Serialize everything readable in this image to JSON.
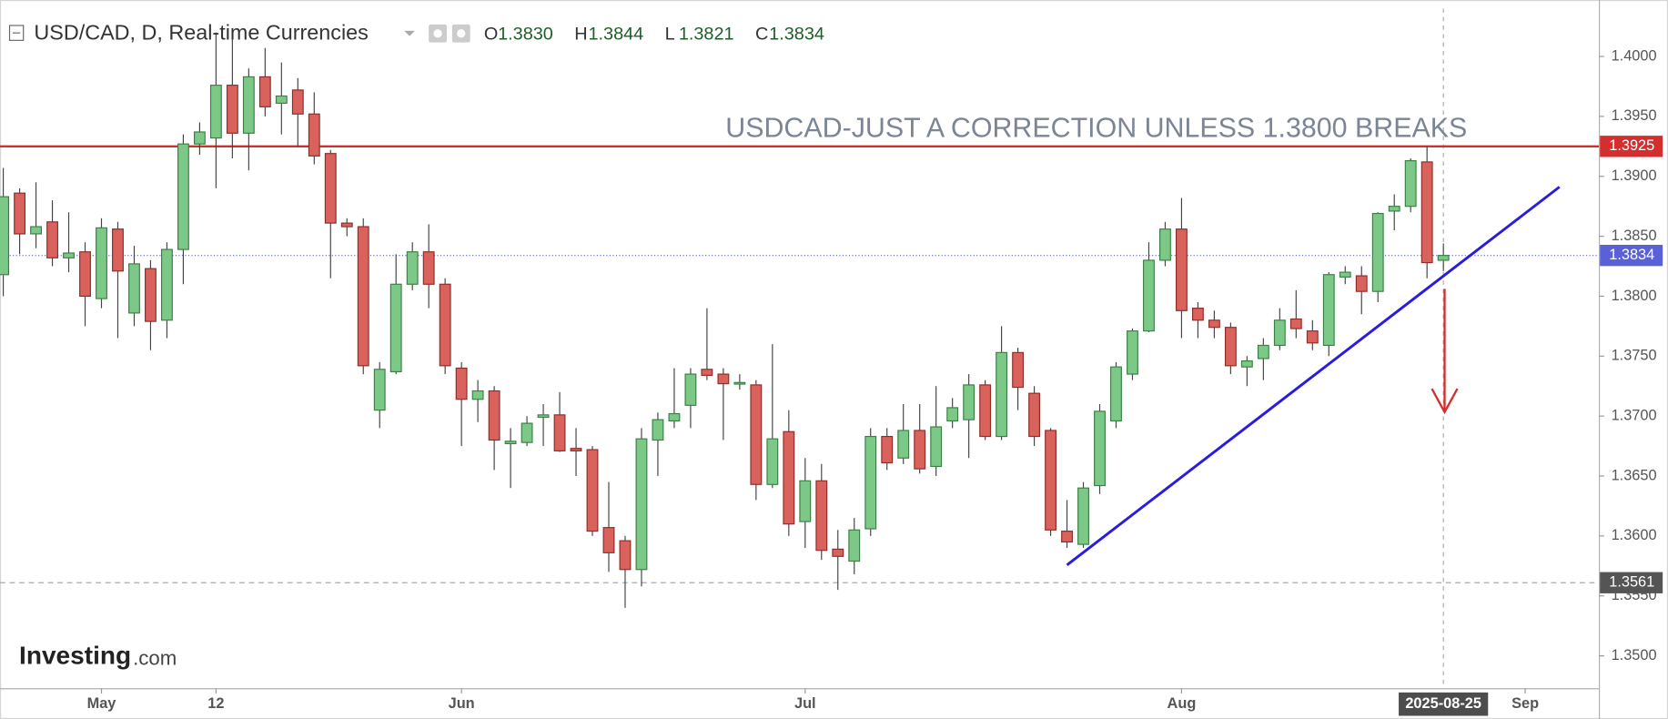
{
  "chart_data": {
    "type": "candlestick",
    "title": "USD/CAD, D, Real-time Currencies",
    "ohlc_header": [
      {
        "name": "O",
        "value": 1.383,
        "label": "1.3830"
      },
      {
        "name": "H",
        "value": 1.3844,
        "label": "1.3844"
      },
      {
        "name": "L",
        "value": 1.3821,
        "label": "1.3821"
      },
      {
        "name": "C",
        "value": 1.3834,
        "label": "1.3834"
      }
    ],
    "annotation": "USDCAD-JUST A CORRECTION UNLESS 1.3800 BREAKS",
    "logo": {
      "brand": "Investing",
      "suffix": ".com"
    },
    "up_color": "#7cc987",
    "down_color": "#d9625c",
    "series": {
      "open": [
        1.3818,
        1.3886,
        1.3852,
        1.3862,
        1.3832,
        1.3837,
        1.3798,
        1.3856,
        1.3786,
        1.3823,
        1.378,
        1.3839,
        1.3927,
        1.3932,
        1.3976,
        1.3936,
        1.3983,
        1.3961,
        1.3972,
        1.3952,
        1.3919,
        1.3861,
        1.3858,
        1.3705,
        1.3737,
        1.381,
        1.3837,
        1.381,
        1.374,
        1.3714,
        1.3721,
        1.3677,
        1.3678,
        1.3699,
        1.3701,
        1.3673,
        1.3672,
        1.3607,
        1.3596,
        1.3572,
        1.368,
        1.3696,
        1.3709,
        1.3739,
        1.3735,
        1.3727,
        1.3726,
        1.3643,
        1.3687,
        1.3612,
        1.3646,
        1.3589,
        1.3579,
        1.3606,
        1.3683,
        1.3665,
        1.3688,
        1.3658,
        1.3696,
        1.3697,
        1.3726,
        1.3683,
        1.3753,
        1.3719,
        1.3688,
        1.3604,
        1.3593,
        1.3642,
        1.3696,
        1.3735,
        1.3771,
        1.383,
        1.3856,
        1.379,
        1.378,
        1.3774,
        1.3741,
        1.3748,
        1.3759,
        1.3781,
        1.3771,
        1.3759,
        1.3816,
        1.3817,
        1.3804,
        1.3871,
        1.3875,
        1.3912,
        1.383
      ],
      "high": [
        1.3907,
        1.389,
        1.3895,
        1.388,
        1.387,
        1.3845,
        1.3865,
        1.3862,
        1.3842,
        1.383,
        1.3845,
        1.3935,
        1.3945,
        1.402,
        1.402,
        1.399,
        1.4007,
        1.3995,
        1.3982,
        1.397,
        1.3922,
        1.3865,
        1.3865,
        1.3745,
        1.3835,
        1.3845,
        1.386,
        1.3815,
        1.3745,
        1.373,
        1.3725,
        1.369,
        1.37,
        1.371,
        1.372,
        1.369,
        1.3675,
        1.3645,
        1.36,
        1.369,
        1.3703,
        1.374,
        1.374,
        1.379,
        1.374,
        1.3735,
        1.373,
        1.376,
        1.3705,
        1.3665,
        1.366,
        1.3605,
        1.3615,
        1.369,
        1.369,
        1.371,
        1.371,
        1.3725,
        1.3715,
        1.3735,
        1.373,
        1.3775,
        1.3757,
        1.3725,
        1.369,
        1.363,
        1.3645,
        1.371,
        1.3745,
        1.3773,
        1.3845,
        1.3862,
        1.3882,
        1.3795,
        1.3788,
        1.3778,
        1.375,
        1.3765,
        1.379,
        1.3805,
        1.378,
        1.382,
        1.3825,
        1.3825,
        1.387,
        1.3885,
        1.3915,
        1.3925,
        1.3844
      ],
      "low": [
        1.38,
        1.3835,
        1.384,
        1.3825,
        1.382,
        1.3775,
        1.379,
        1.3765,
        1.3775,
        1.3755,
        1.3765,
        1.381,
        1.3918,
        1.389,
        1.3915,
        1.3905,
        1.395,
        1.3935,
        1.3925,
        1.391,
        1.3815,
        1.385,
        1.3735,
        1.369,
        1.3735,
        1.3805,
        1.379,
        1.3735,
        1.3675,
        1.3695,
        1.3655,
        1.364,
        1.3675,
        1.3675,
        1.367,
        1.365,
        1.36,
        1.357,
        1.354,
        1.3558,
        1.365,
        1.369,
        1.369,
        1.373,
        1.368,
        1.3722,
        1.363,
        1.364,
        1.36,
        1.359,
        1.358,
        1.3555,
        1.3568,
        1.36,
        1.3655,
        1.366,
        1.3652,
        1.365,
        1.369,
        1.3665,
        1.368,
        1.368,
        1.3705,
        1.3675,
        1.36,
        1.359,
        1.359,
        1.3635,
        1.369,
        1.373,
        1.377,
        1.3825,
        1.3765,
        1.3765,
        1.3765,
        1.3735,
        1.3725,
        1.373,
        1.3755,
        1.3765,
        1.3755,
        1.375,
        1.381,
        1.3785,
        1.3795,
        1.3855,
        1.387,
        1.3815,
        1.3821
      ],
      "close": [
        1.3883,
        1.3852,
        1.3858,
        1.3832,
        1.3836,
        1.38,
        1.3857,
        1.3821,
        1.3827,
        1.3779,
        1.3839,
        1.3927,
        1.3937,
        1.3976,
        1.3936,
        1.3983,
        1.3958,
        1.3967,
        1.3952,
        1.3917,
        1.3861,
        1.3858,
        1.3742,
        1.3739,
        1.381,
        1.3837,
        1.381,
        1.3742,
        1.3714,
        1.3721,
        1.368,
        1.3679,
        1.3694,
        1.3701,
        1.3671,
        1.3671,
        1.3604,
        1.3586,
        1.3572,
        1.3681,
        1.3697,
        1.3702,
        1.3735,
        1.3734,
        1.3727,
        1.3728,
        1.3643,
        1.3681,
        1.361,
        1.3646,
        1.3588,
        1.3583,
        1.3605,
        1.3683,
        1.3661,
        1.3688,
        1.3656,
        1.3691,
        1.3707,
        1.3726,
        1.3683,
        1.3753,
        1.3724,
        1.3683,
        1.3605,
        1.3595,
        1.364,
        1.3704,
        1.3741,
        1.3771,
        1.383,
        1.3856,
        1.3788,
        1.378,
        1.3774,
        1.3742,
        1.3746,
        1.3759,
        1.378,
        1.3773,
        1.3761,
        1.3818,
        1.382,
        1.3804,
        1.3869,
        1.3875,
        1.3913,
        1.3828,
        1.3834
      ]
    },
    "xlim": [
      -0.2,
      97.5
    ],
    "xticks": [
      {
        "value": 6,
        "label": "May"
      },
      {
        "value": 13,
        "label": "12"
      },
      {
        "value": 28,
        "label": "Jun"
      },
      {
        "value": 49,
        "label": "Jul"
      },
      {
        "value": 72,
        "label": "Aug"
      },
      {
        "value": 93,
        "label": "Sep"
      }
    ],
    "cursor": {
      "value": 88,
      "label": "2025-08-25"
    },
    "ylim": [
      1.3473,
      1.404
    ],
    "yticks": [
      {
        "value": 1.35,
        "label": "1.3500"
      },
      {
        "value": 1.355,
        "label": "1.3550"
      },
      {
        "value": 1.36,
        "label": "1.3600"
      },
      {
        "value": 1.365,
        "label": "1.3650"
      },
      {
        "value": 1.37,
        "label": "1.3700"
      },
      {
        "value": 1.375,
        "label": "1.3750"
      },
      {
        "value": 1.38,
        "label": "1.3800"
      },
      {
        "value": 1.385,
        "label": "1.3850"
      },
      {
        "value": 1.39,
        "label": "1.3900"
      },
      {
        "value": 1.395,
        "label": "1.3950"
      },
      {
        "value": 1.4,
        "label": "1.4000"
      }
    ],
    "levels": [
      {
        "value": 1.3925,
        "label": "1.3925",
        "color": "#d32f2f",
        "style": "solid"
      },
      {
        "value": 1.3834,
        "label": "1.3834",
        "color": "#5a60d6",
        "style": "dotted"
      },
      {
        "value": 1.3561,
        "label": "1.3561",
        "color": "#555555",
        "style": "dashed"
      }
    ]
  }
}
